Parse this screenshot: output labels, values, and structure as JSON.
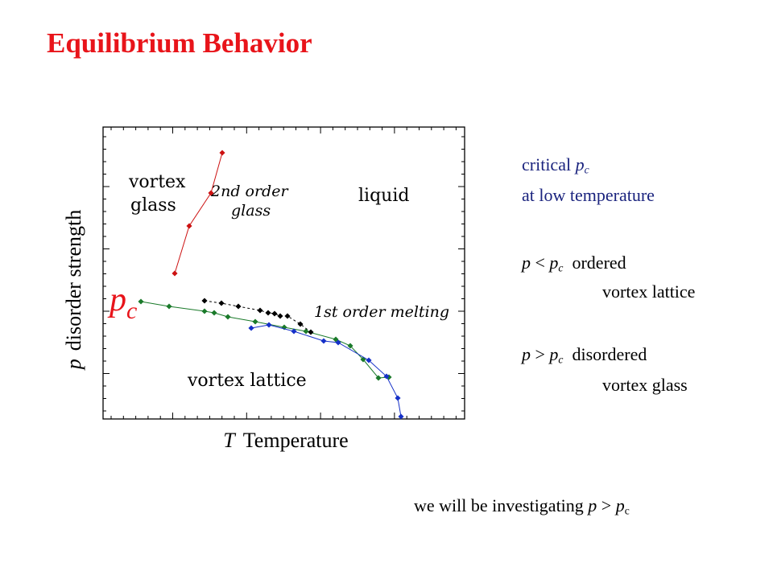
{
  "title": "Equilibrium Behavior",
  "plot": {
    "y_var": "p",
    "y_label": "disorder strength",
    "x_var": "T",
    "x_label": "Temperature",
    "pc_var": "p",
    "pc_sub": "c",
    "regions": [
      "vortex",
      "glass",
      "2nd order",
      "glass",
      "liquid",
      "1st order melting",
      "vortex lattice"
    ]
  },
  "critical": {
    "word": "critical",
    "var": "p",
    "sub": "c",
    "line2": "at low temperature"
  },
  "cases": [
    {
      "var": "p",
      "op": "<",
      "var2": "p",
      "sub": "c",
      "label": "ordered",
      "label2": "vortex lattice"
    },
    {
      "var": "p",
      "op": ">",
      "var2": "p",
      "sub": "c",
      "label": "disordered",
      "label2": "vortex glass"
    }
  ],
  "footer": {
    "text": "we will be investigating",
    "var": "p",
    "op": ">",
    "var2": "p",
    "sub": "c"
  }
}
